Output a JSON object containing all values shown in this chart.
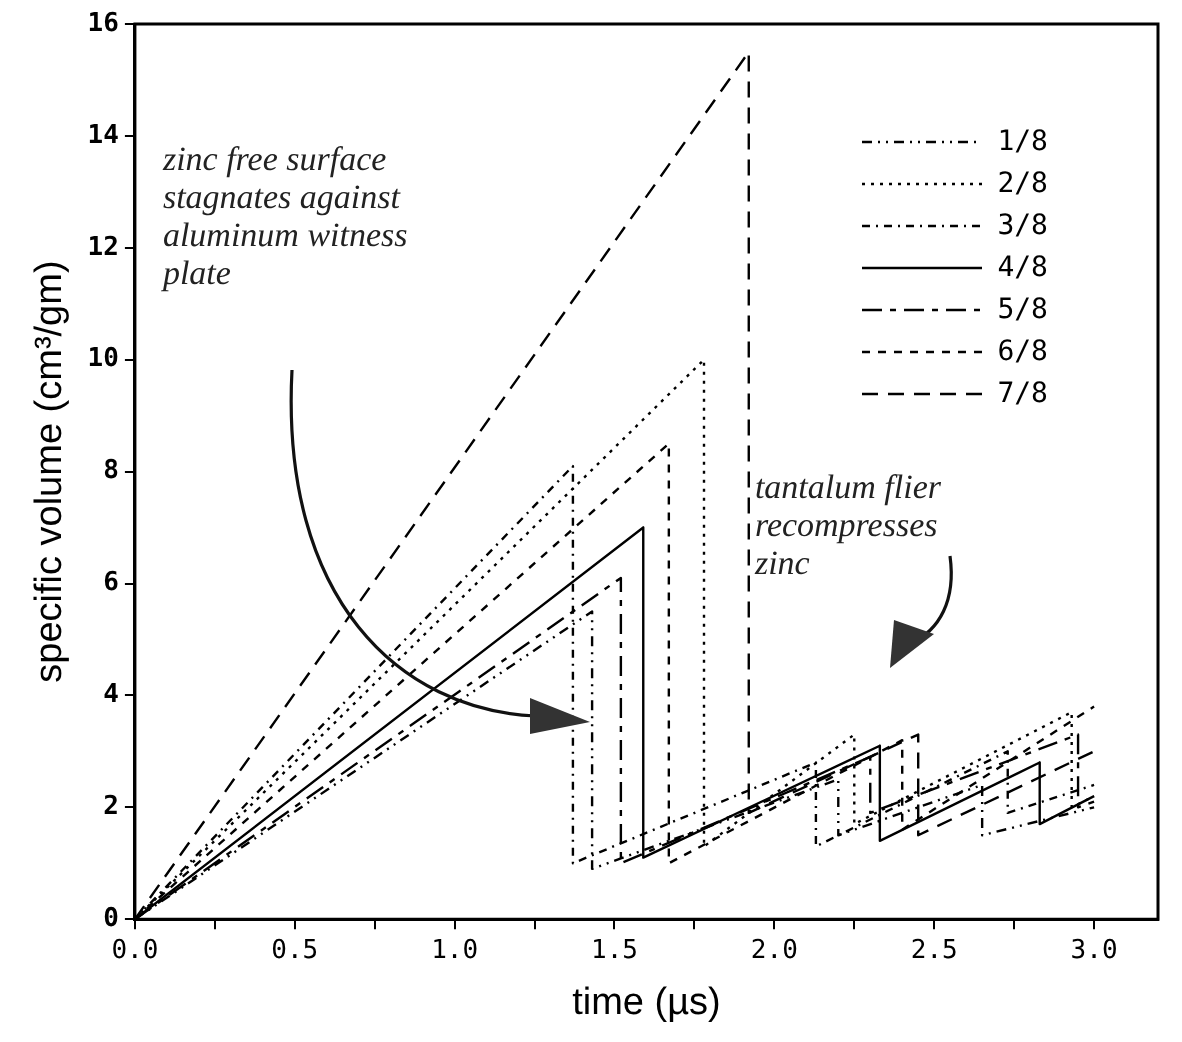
{
  "chart_data": {
    "type": "line",
    "xlabel": "time (µs)",
    "ylabel": "specific volume (cm³/gm)",
    "xlim": [
      0,
      3.2
    ],
    "ylim": [
      0,
      16
    ],
    "xticks": [
      {
        "value": 0,
        "label": "0.0"
      },
      {
        "value": 0.25,
        "label": null
      },
      {
        "value": 0.5,
        "label": "0.5"
      },
      {
        "value": 0.75,
        "label": null
      },
      {
        "value": 1,
        "label": "1.0"
      },
      {
        "value": 1.25,
        "label": null
      },
      {
        "value": 1.5,
        "label": "1.5"
      },
      {
        "value": 1.75,
        "label": null
      },
      {
        "value": 2,
        "label": "2.0"
      },
      {
        "value": 2.25,
        "label": null
      },
      {
        "value": 2.5,
        "label": "2.5"
      },
      {
        "value": 2.75,
        "label": null
      },
      {
        "value": 3,
        "label": "3.0"
      }
    ],
    "yticks": [
      0,
      2,
      4,
      6,
      8,
      10,
      12,
      14,
      16
    ],
    "grid": false,
    "legend": "top right",
    "marker": "none",
    "annotations": [
      "zinc free surface stagnates against aluminum witness plate",
      "tantalum flier recompresses zinc"
    ],
    "series": [
      {
        "name": "1/8",
        "color": "#000000",
        "line_style": "dashed",
        "x": [
          0,
          1.43,
          1.43,
          2.2,
          2.2,
          2.65,
          2.65,
          3.0
        ],
        "values": [
          0,
          5.5,
          0.9,
          2.5,
          1.5,
          2.4,
          1.5,
          2.0
        ]
      },
      {
        "name": "2/8",
        "color": "#000000",
        "line_style": "dotted",
        "x": [
          0,
          1.78,
          1.78,
          2.25,
          2.25,
          2.93,
          2.93,
          3.0
        ],
        "values": [
          0,
          10.0,
          1.3,
          3.3,
          1.7,
          3.7,
          2.0,
          2.2
        ]
      },
      {
        "name": "3/8",
        "color": "#000000",
        "line_style": "dashed",
        "x": [
          0,
          1.37,
          1.37,
          2.13,
          2.13,
          2.73,
          2.73,
          3.0
        ],
        "values": [
          0,
          8.1,
          1.0,
          2.8,
          1.3,
          3.0,
          1.9,
          2.4
        ]
      },
      {
        "name": "4/8",
        "color": "#000000",
        "line_style": "solid",
        "x": [
          0,
          1.59,
          1.59,
          2.33,
          2.33,
          2.83,
          2.83,
          3.0
        ],
        "values": [
          0,
          7.0,
          1.1,
          3.1,
          1.4,
          2.8,
          1.7,
          2.2
        ]
      },
      {
        "name": "5/8",
        "color": "#000000",
        "line_style": "dashed",
        "x": [
          0,
          1.52,
          1.52,
          2.3,
          2.3,
          2.95,
          2.95,
          3.0
        ],
        "values": [
          0,
          6.1,
          1.0,
          2.9,
          1.9,
          3.3,
          2.0,
          2.1
        ]
      },
      {
        "name": "6/8",
        "color": "#000000",
        "line_style": "dashed",
        "x": [
          0,
          1.67,
          1.67,
          2.4,
          2.4,
          3.0
        ],
        "values": [
          0,
          8.5,
          1.0,
          3.2,
          1.6,
          3.8
        ]
      },
      {
        "name": "7/8",
        "color": "#000000",
        "line_style": "dashed",
        "x": [
          0,
          1.92,
          1.92,
          2.45,
          2.45,
          3.0
        ],
        "values": [
          0,
          15.5,
          1.9,
          3.3,
          1.5,
          3.0
        ]
      }
    ]
  }
}
